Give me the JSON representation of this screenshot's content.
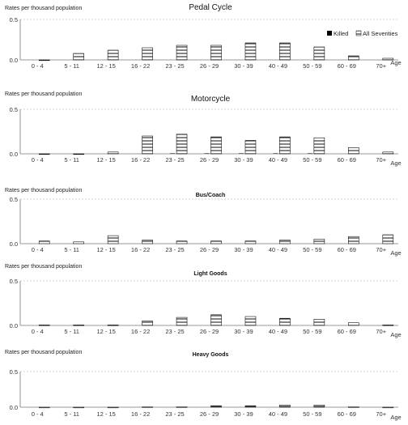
{
  "legend": {
    "killed": "Killed",
    "all_severities": "All Severities"
  },
  "chart_data": [
    {
      "type": "bar",
      "title": "Pedal Cycle",
      "ylabel": "Rates per thousand population",
      "xlabel": "Age",
      "ylim": [
        0,
        0.5
      ],
      "yticks": [
        "0.0",
        "0.5"
      ],
      "grid": true,
      "legend_position": "top-right",
      "categories": [
        "0 - 4",
        "5 - 11",
        "12 - 15",
        "16 - 22",
        "23 - 25",
        "26 - 29",
        "30 - 39",
        "40 - 49",
        "50 - 59",
        "60 - 69",
        "70+"
      ],
      "series": [
        {
          "name": "Killed",
          "values": [
            0,
            0,
            0,
            0,
            0,
            0,
            0,
            0,
            0,
            0,
            0
          ]
        },
        {
          "name": "All Severities",
          "values": [
            0,
            0.08,
            0.12,
            0.15,
            0.18,
            0.18,
            0.21,
            0.21,
            0.16,
            0.05,
            0.02
          ]
        }
      ]
    },
    {
      "type": "bar",
      "title": "Motorcycle",
      "ylabel": "Rates per thousand population",
      "xlabel": "Age",
      "ylim": [
        0,
        0.5
      ],
      "yticks": [
        "0.0",
        "0.5"
      ],
      "grid": true,
      "categories": [
        "0 - 4",
        "5 - 11",
        "12 - 15",
        "16 - 22",
        "23 - 25",
        "26 - 29",
        "30 - 39",
        "40 - 49",
        "50 - 59",
        "60 - 69",
        "70+"
      ],
      "series": [
        {
          "name": "Killed",
          "values": [
            0,
            0,
            0,
            0,
            0.005,
            0.005,
            0.005,
            0.005,
            0.005,
            0,
            0
          ]
        },
        {
          "name": "All Severities",
          "values": [
            0,
            0,
            0.02,
            0.2,
            0.22,
            0.19,
            0.15,
            0.19,
            0.18,
            0.07,
            0.02
          ]
        }
      ]
    },
    {
      "type": "bar",
      "title": "Bus/Coach",
      "ylabel": "Rates per thousand population",
      "xlabel": "Age",
      "ylim": [
        0,
        0.5
      ],
      "yticks": [
        "0.0",
        "0.5"
      ],
      "grid": true,
      "categories": [
        "0 - 4",
        "5 - 11",
        "12 - 15",
        "16 - 22",
        "23 - 25",
        "26 - 29",
        "30 - 39",
        "40 - 49",
        "50 - 59",
        "60 - 69",
        "70+"
      ],
      "series": [
        {
          "name": "Killed",
          "values": [
            0,
            0,
            0,
            0,
            0,
            0,
            0,
            0,
            0,
            0,
            0
          ]
        },
        {
          "name": "All Severities",
          "values": [
            0.03,
            0.02,
            0.09,
            0.04,
            0.03,
            0.03,
            0.03,
            0.04,
            0.05,
            0.08,
            0.1
          ]
        }
      ]
    },
    {
      "type": "bar",
      "title": "Light Goods",
      "ylabel": "Rates per thousand population",
      "xlabel": "Age",
      "ylim": [
        0,
        0.5
      ],
      "yticks": [
        "0.0",
        "0.5"
      ],
      "grid": true,
      "categories": [
        "0 - 4",
        "5 - 11",
        "12 - 15",
        "16 - 22",
        "23 - 25",
        "26 - 29",
        "30 - 39",
        "40 - 49",
        "50 - 59",
        "60 - 69",
        "70+"
      ],
      "series": [
        {
          "name": "Killed",
          "values": [
            0,
            0,
            0,
            0,
            0,
            0,
            0,
            0,
            0,
            0,
            0
          ]
        },
        {
          "name": "All Severities",
          "values": [
            0.005,
            0.005,
            0.005,
            0.05,
            0.09,
            0.12,
            0.1,
            0.08,
            0.07,
            0.03,
            0.005
          ]
        }
      ]
    },
    {
      "type": "bar",
      "title": "Heavy Goods",
      "ylabel": "Rates per thousand population",
      "xlabel": "Age",
      "ylim": [
        0,
        0.5
      ],
      "yticks": [
        "0.0",
        "0.5"
      ],
      "grid": true,
      "categories": [
        "0 - 4",
        "5 - 11",
        "12 - 15",
        "16 - 22",
        "23 - 25",
        "26 - 29",
        "30 - 39",
        "40 - 49",
        "50 - 59",
        "60 - 69",
        "70+"
      ],
      "series": [
        {
          "name": "Killed",
          "values": [
            0,
            0,
            0,
            0,
            0,
            0,
            0,
            0,
            0,
            0,
            0
          ]
        },
        {
          "name": "All Severities",
          "values": [
            0,
            0,
            0,
            0.005,
            0.005,
            0.02,
            0.02,
            0.03,
            0.03,
            0.005,
            0
          ]
        }
      ]
    }
  ]
}
